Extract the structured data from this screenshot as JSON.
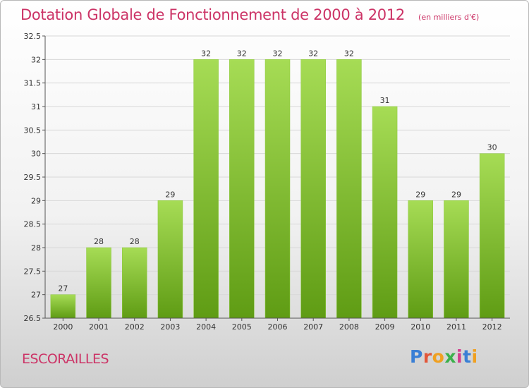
{
  "title": "Dotation Globale de Fonctionnement de 2000 à 2012",
  "unit_note": "(en milliers d'€)",
  "place_name": "ESCORAILLES",
  "logo": {
    "text": "Proxiti",
    "colors": [
      "#3a7fd5",
      "#e2573a",
      "#f0a020",
      "#3ab04a",
      "#d23a8c",
      "#3a7fd5",
      "#f0a020"
    ]
  },
  "colors": {
    "title": "#cc3366",
    "bar_top": "#a6dc55",
    "bar_bottom": "#5f9c14",
    "grid": "#d8d8d8",
    "axis": "#555555"
  },
  "chart_data": {
    "type": "bar",
    "categories": [
      "2000",
      "2001",
      "2002",
      "2003",
      "2004",
      "2005",
      "2006",
      "2007",
      "2008",
      "2009",
      "2010",
      "2011",
      "2012"
    ],
    "values": [
      27,
      28,
      28,
      29,
      32,
      32,
      32,
      32,
      32,
      31,
      29,
      29,
      30
    ],
    "value_labels": [
      "27",
      "28",
      "28",
      "29",
      "32",
      "32",
      "32",
      "32",
      "32",
      "31",
      "29",
      "29",
      "30"
    ],
    "ylim": [
      26.5,
      32.5
    ],
    "yticks": [
      "26.5",
      "27",
      "27.5",
      "28",
      "28.5",
      "29",
      "29.5",
      "30",
      "30.5",
      "31",
      "31.5",
      "32",
      "32.5"
    ],
    "grid": "horizontal",
    "title": "Dotation Globale de Fonctionnement de 2000 à 2012",
    "xlabel": "",
    "ylabel": ""
  }
}
